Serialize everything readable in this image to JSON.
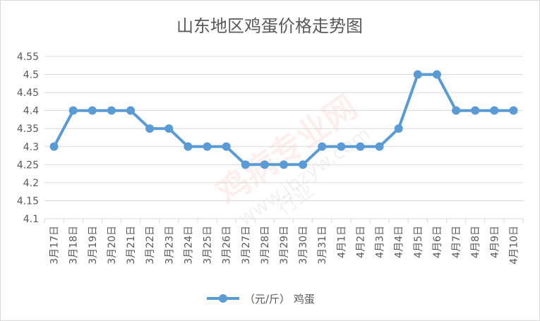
{
  "chart_data": {
    "type": "line",
    "title": "山东地区鸡蛋价格走势图",
    "xlabel": "",
    "ylabel": "",
    "categories": [
      "3月17日",
      "3月18日",
      "3月19日",
      "3月20日",
      "3月21日",
      "3月22日",
      "3月23日",
      "3月24日",
      "3月25日",
      "3月26日",
      "3月27日",
      "3月28日",
      "3月29日",
      "3月30日",
      "3月31日",
      "4月1日",
      "4月2日",
      "4月3日",
      "4月4日",
      "4月5日",
      "4月6日",
      "4月7日",
      "4月8日",
      "4月9日",
      "4月10日"
    ],
    "series": [
      {
        "name": "（元/斤） 鸡蛋",
        "values": [
          4.3,
          4.4,
          4.4,
          4.4,
          4.4,
          4.35,
          4.35,
          4.3,
          4.3,
          4.3,
          4.25,
          4.25,
          4.25,
          4.25,
          4.3,
          4.3,
          4.3,
          4.3,
          4.35,
          4.5,
          4.5,
          4.4,
          4.4,
          4.4,
          4.4
        ]
      }
    ],
    "ylim": [
      4.1,
      4.55
    ],
    "yticks": [
      "4.1",
      "4.15",
      "4.2",
      "4.25",
      "4.3",
      "4.35",
      "4.4",
      "4.45",
      "4.5",
      "4.55"
    ],
    "grid": true,
    "legend": "bottom",
    "color": "#5b9bd5"
  },
  "watermark": {
    "main": "鸡病专业网",
    "url": "www.jbzyw.com",
    "sub": "行业"
  }
}
